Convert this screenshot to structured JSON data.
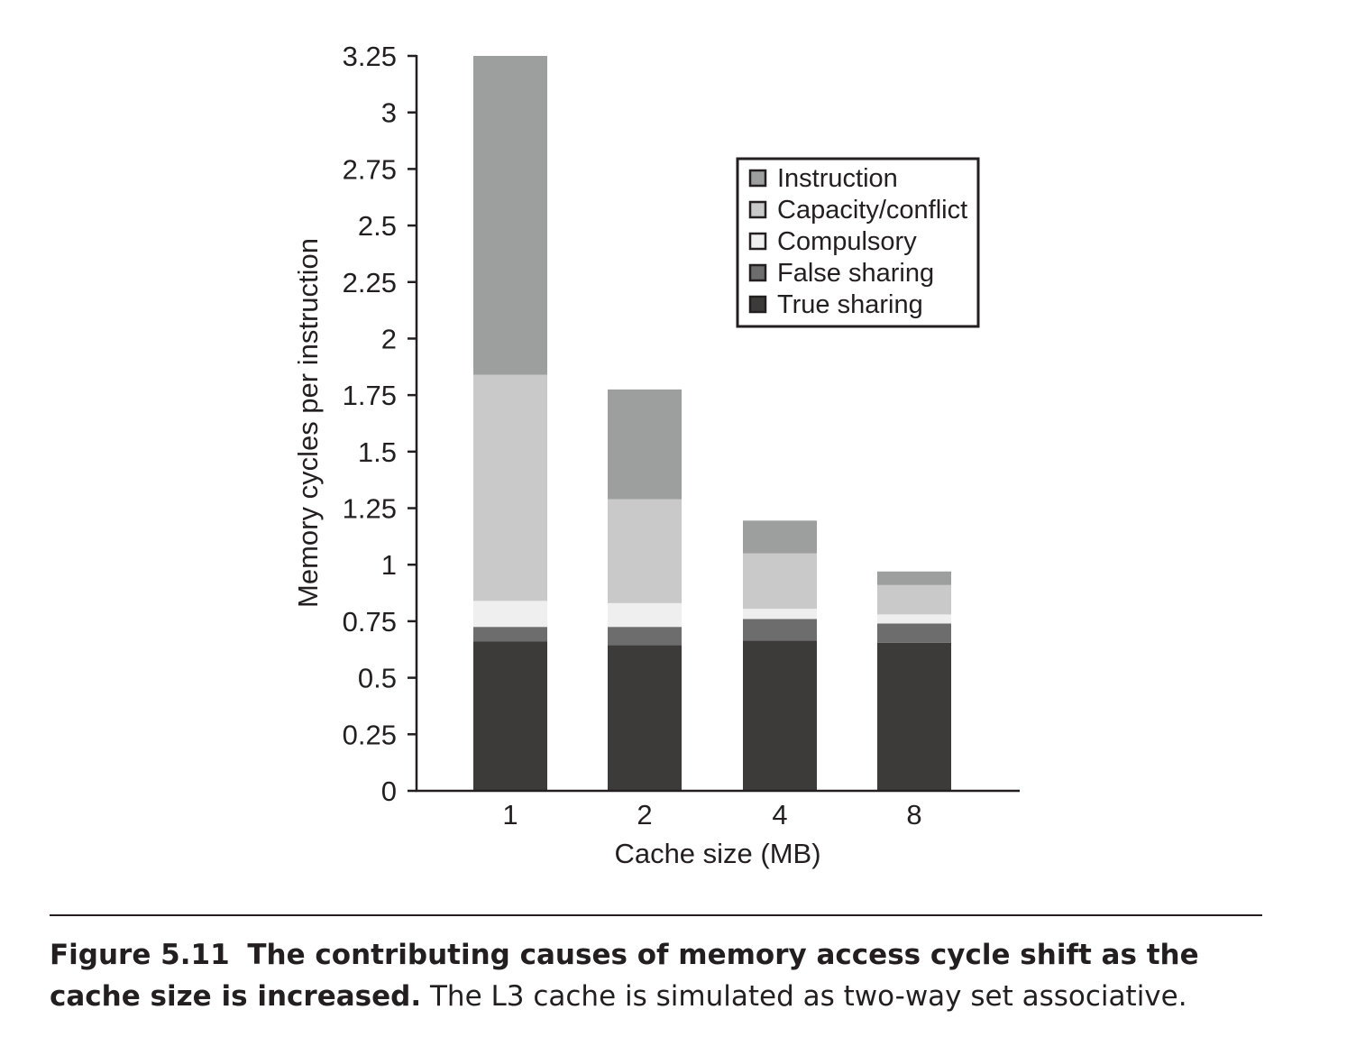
{
  "chart_data": {
    "type": "bar",
    "stacked": true,
    "categories": [
      "1",
      "2",
      "4",
      "8"
    ],
    "xlabel": "Cache size (MB)",
    "ylabel": "Memory cycles per instruction",
    "ylim": [
      0,
      3.25
    ],
    "yticks": [
      "0",
      "0.25",
      "0.5",
      "0.75",
      "1",
      "1.25",
      "1.5",
      "1.75",
      "2",
      "2.25",
      "2.5",
      "2.75",
      "3",
      "3.25"
    ],
    "legend_position": "top-right",
    "series": [
      {
        "name": "True sharing",
        "values": [
          0.66,
          0.645,
          0.665,
          0.655
        ],
        "color": "#3d3a3a"
      },
      {
        "name": "False sharing",
        "values": [
          0.065,
          0.08,
          0.095,
          0.085
        ],
        "color": "#6d6d6d"
      },
      {
        "name": "Compulsory",
        "values": [
          0.115,
          0.105,
          0.045,
          0.04
        ],
        "color": "#efefef"
      },
      {
        "name": "Capacity/conflict",
        "values": [
          1.0,
          0.46,
          0.245,
          0.13
        ],
        "color": "#c9c9c9"
      },
      {
        "name": "Instruction",
        "values": [
          1.41,
          0.485,
          0.145,
          0.06
        ],
        "color": "#9d9e9e"
      }
    ],
    "legend_order": [
      "Instruction",
      "Capacity/conflict",
      "Compulsory",
      "False sharing",
      "True sharing"
    ]
  },
  "caption": {
    "label": "Figure 5.11",
    "bold_text": "The contributing causes of memory access cycle shift as the cache size is increased.",
    "text": "The L3 cache is simulated as two-way set associative."
  }
}
